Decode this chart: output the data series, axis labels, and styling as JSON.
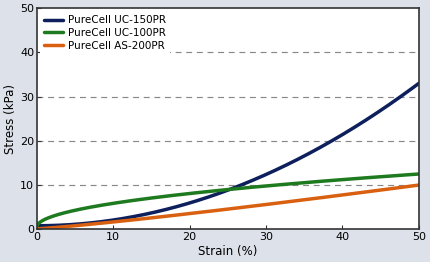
{
  "xlabel": "Strain (%)",
  "ylabel": "Stress (kPa)",
  "xlim": [
    0,
    50
  ],
  "ylim": [
    0,
    50
  ],
  "yticks": [
    0,
    10,
    20,
    30,
    40,
    50
  ],
  "xticks": [
    0,
    10,
    20,
    30,
    40,
    50
  ],
  "background_color": "#dde1ea",
  "plot_background_color": "#ffffff",
  "grid_color": "#888888",
  "border_color": "#333333",
  "series": [
    {
      "label": "PureCell UC-150PR",
      "color": "#0d1f5c",
      "exponent": 2.0,
      "start_stress": 0.8,
      "end_stress": 33.0
    },
    {
      "label": "PureCell UC-100PR",
      "color": "#1e7a1e",
      "exponent": 0.5,
      "start_stress": 0.5,
      "end_stress": 12.5
    },
    {
      "label": "PureCell AS-200PR",
      "color": "#d96010",
      "exponent": 1.15,
      "start_stress": 0.1,
      "end_stress": 10.0
    }
  ],
  "legend_fontsize": 7.5,
  "axis_label_fontsize": 8.5,
  "tick_fontsize": 8,
  "linewidth": 2.5
}
